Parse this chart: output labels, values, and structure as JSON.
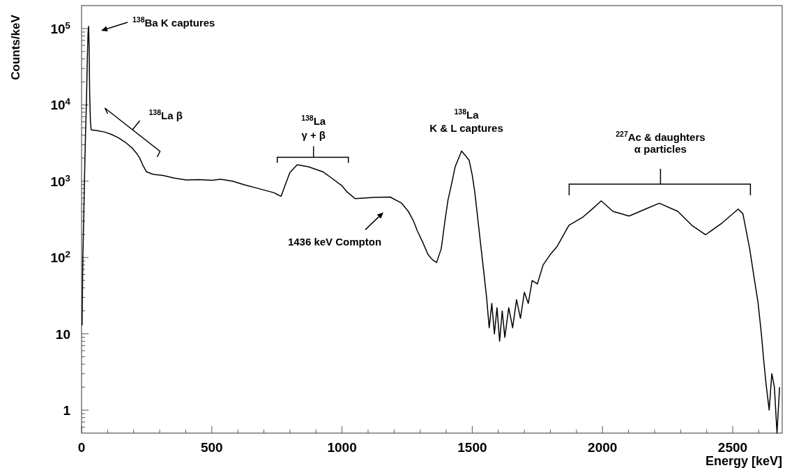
{
  "chart_data": {
    "type": "line",
    "xlabel": "Energy [keV]",
    "ylabel": "Counts/keV",
    "log": "y",
    "xlim": [
      0,
      2690
    ],
    "ylim": [
      0.5,
      200000
    ],
    "xticks": [
      0,
      {
        "value": 100,
        "label": null
      },
      {
        "value": 200,
        "label": null
      },
      {
        "value": 300,
        "label": null
      },
      {
        "value": 400,
        "label": null
      },
      500,
      {
        "value": 600,
        "label": null
      },
      {
        "value": 700,
        "label": null
      },
      {
        "value": 800,
        "label": null
      },
      {
        "value": 900,
        "label": null
      },
      1000,
      {
        "value": 1100,
        "label": null
      },
      {
        "value": 1200,
        "label": null
      },
      {
        "value": 1300,
        "label": null
      },
      {
        "value": 1400,
        "label": null
      },
      1500,
      {
        "value": 1600,
        "label": null
      },
      {
        "value": 1700,
        "label": null
      },
      {
        "value": 1800,
        "label": null
      },
      {
        "value": 1900,
        "label": null
      },
      2000,
      {
        "value": 2100,
        "label": null
      },
      {
        "value": 2200,
        "label": null
      },
      {
        "value": 2300,
        "label": null
      },
      {
        "value": 2400,
        "label": null
      },
      2500,
      {
        "value": 2600,
        "label": null
      }
    ],
    "yticks": [
      {
        "value": 0.6,
        "label": null
      },
      {
        "value": 0.7,
        "label": null
      },
      {
        "value": 0.8,
        "label": null
      },
      {
        "value": 0.9,
        "label": null
      },
      1,
      {
        "value": 2,
        "label": null
      },
      {
        "value": 3,
        "label": null
      },
      {
        "value": 4,
        "label": null
      },
      {
        "value": 5,
        "label": null
      },
      {
        "value": 6,
        "label": null
      },
      {
        "value": 7,
        "label": null
      },
      {
        "value": 8,
        "label": null
      },
      {
        "value": 9,
        "label": null
      },
      10,
      {
        "value": 20,
        "label": null
      },
      {
        "value": 30,
        "label": null
      },
      {
        "value": 40,
        "label": null
      },
      {
        "value": 50,
        "label": null
      },
      {
        "value": 60,
        "label": null
      },
      {
        "value": 70,
        "label": null
      },
      {
        "value": 80,
        "label": null
      },
      {
        "value": 90,
        "label": null
      },
      {
        "value": 100,
        "label": "10$^{2}$"
      },
      {
        "value": 200,
        "label": null
      },
      {
        "value": 300,
        "label": null
      },
      {
        "value": 400,
        "label": null
      },
      {
        "value": 500,
        "label": null
      },
      {
        "value": 600,
        "label": null
      },
      {
        "value": 700,
        "label": null
      },
      {
        "value": 800,
        "label": null
      },
      {
        "value": 900,
        "label": null
      },
      {
        "value": 1000,
        "label": "10$^{3}$"
      },
      {
        "value": 2000,
        "label": null
      },
      {
        "value": 3000,
        "label": null
      },
      {
        "value": 4000,
        "label": null
      },
      {
        "value": 5000,
        "label": null
      },
      {
        "value": 6000,
        "label": null
      },
      {
        "value": 7000,
        "label": null
      },
      {
        "value": 8000,
        "label": null
      },
      {
        "value": 9000,
        "label": null
      },
      {
        "value": 10000,
        "label": "10$^{4}$"
      },
      {
        "value": 20000,
        "label": null
      },
      {
        "value": 30000,
        "label": null
      },
      {
        "value": 40000,
        "label": null
      },
      {
        "value": 50000,
        "label": null
      },
      {
        "value": 60000,
        "label": null
      },
      {
        "value": 70000,
        "label": null
      },
      {
        "value": 80000,
        "label": null
      },
      {
        "value": 90000,
        "label": null
      },
      {
        "value": 100000,
        "label": "10$^{5}$"
      }
    ],
    "series": [
      {
        "color": "#000000",
        "x": [
          2,
          5,
          8,
          11,
          15,
          19,
          22,
          25,
          27,
          29,
          31,
          34,
          37,
          60,
          89,
          115,
          142,
          170,
          196,
          210,
          223,
          236,
          249,
          275,
          312,
          355,
          401,
          450,
          500,
          534,
          580,
          623,
          680,
          739,
          755,
          766,
          784,
          800,
          828,
          870,
          926,
          960,
          998,
          1020,
          1051,
          1085,
          1122,
          1185,
          1229,
          1255,
          1274,
          1290,
          1309,
          1330,
          1345,
          1363,
          1381,
          1395,
          1407,
          1420,
          1434,
          1459,
          1488,
          1500,
          1510,
          1520,
          1532,
          1545,
          1555,
          1565,
          1575,
          1585,
          1595,
          1605,
          1615,
          1625,
          1640,
          1655,
          1670,
          1685,
          1700,
          1715,
          1730,
          1750,
          1772,
          1800,
          1826,
          1871,
          1924,
          1960,
          1995,
          2040,
          2102,
          2165,
          2218,
          2289,
          2343,
          2396,
          2459,
          2521,
          2539,
          2565,
          2583,
          2597,
          2610,
          2619,
          2628,
          2640,
          2650,
          2660,
          2670,
          2680
        ],
        "values": [
          13,
          100,
          300,
          1000,
          4000,
          12000,
          40000,
          90000,
          107000,
          60000,
          15000,
          6000,
          4700,
          4600,
          4400,
          4100,
          3700,
          3200,
          2680,
          2350,
          2020,
          1600,
          1330,
          1230,
          1190,
          1100,
          1040,
          1050,
          1030,
          1060,
          1000,
          900,
          800,
          705,
          660,
          634,
          935,
          1300,
          1640,
          1550,
          1330,
          1100,
          880,
          720,
          590,
          600,
          614,
          620,
          514,
          400,
          303,
          220,
          161,
          110,
          95,
          86,
          131,
          300,
          571,
          900,
          1530,
          2490,
          1880,
          1200,
          705,
          350,
          151,
          61,
          30,
          12,
          25,
          10,
          22,
          8,
          20,
          9,
          22,
          12,
          28,
          16,
          35,
          25,
          50,
          45,
          80,
          110,
          140,
          264,
          337,
          430,
          552,
          403,
          349,
          431,
          514,
          403,
          264,
          199,
          283,
          431,
          375,
          131,
          52,
          26,
          10,
          4.5,
          2.2,
          1,
          3,
          2,
          0.5,
          2
        ]
      }
    ],
    "annotations": [
      "$^{138}$Ba K captures",
      "$^{138}$La β",
      "$^{138}$La\nγ + β",
      "$^{138}$La\nK & L  captures",
      "1436 keV Compton",
      "$^{227}$Ac & daughters\nα particles"
    ]
  }
}
